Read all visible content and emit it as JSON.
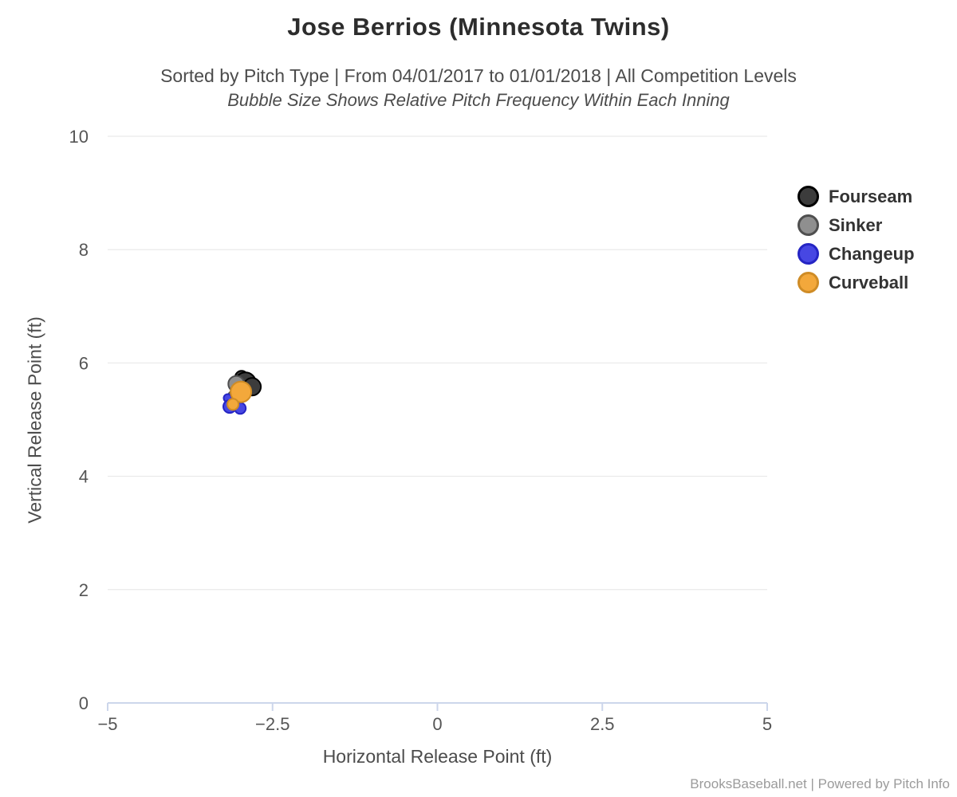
{
  "header": {
    "title": "Jose Berrios (Minnesota Twins)",
    "subtitle": "Sorted by Pitch Type | From 04/01/2017 to 01/01/2018 | All Competition Levels",
    "subtitle_note": "Bubble Size Shows Relative Pitch Frequency Within Each Inning"
  },
  "chart_data": {
    "type": "scatter",
    "title": "Jose Berrios (Minnesota Twins)",
    "xlabel": "Horizontal Release Point (ft)",
    "ylabel": "Vertical Release Point (ft)",
    "xlim": [
      -5,
      5
    ],
    "ylim": [
      0,
      10
    ],
    "x_ticks": [
      -5,
      -2.5,
      0,
      2.5,
      5
    ],
    "x_tick_labels": [
      "−5",
      "−2.5",
      "0",
      "2.5",
      "5"
    ],
    "y_ticks": [
      0,
      2,
      4,
      6,
      8,
      10
    ],
    "y_tick_labels": [
      "0",
      "2",
      "4",
      "6",
      "8",
      "10"
    ],
    "grid": "horizontal",
    "legend_position": "right",
    "bubble_note": "bubble radius r is in screen pixels, size shows relative pitch frequency",
    "series": [
      {
        "name": "Fourseam",
        "fill": "#3c3c3c",
        "stroke": "#000000",
        "points": [
          {
            "x": -2.97,
            "y": 5.75,
            "r": 8
          },
          {
            "x": -2.91,
            "y": 5.65,
            "r": 13
          },
          {
            "x": -2.81,
            "y": 5.58,
            "r": 11
          }
        ]
      },
      {
        "name": "Sinker",
        "fill": "#8f8f8f",
        "stroke": "#4f4f4f",
        "points": [
          {
            "x": -3.05,
            "y": 5.63,
            "r": 10
          },
          {
            "x": -3.09,
            "y": 5.41,
            "r": 7
          }
        ]
      },
      {
        "name": "Changeup",
        "fill": "#4747e3",
        "stroke": "#2525c4",
        "points": [
          {
            "x": -3.18,
            "y": 5.38,
            "r": 5
          },
          {
            "x": -3.15,
            "y": 5.23,
            "r": 8
          },
          {
            "x": -2.99,
            "y": 5.2,
            "r": 7
          }
        ]
      },
      {
        "name": "Curveball",
        "fill": "#f3a83b",
        "stroke": "#cf8c26",
        "points": [
          {
            "x": -2.98,
            "y": 5.49,
            "r": 13
          },
          {
            "x": -3.1,
            "y": 5.27,
            "r": 7
          }
        ]
      }
    ]
  },
  "colors": {
    "grid_line": "#e6e6e6",
    "axis_line": "#ccd6eb",
    "tick_label": "#555555",
    "title_text": "#2d2d2d",
    "subtitle_text": "#4c4c4c",
    "legend_text": "#333333",
    "footer_text": "#9b9b9b",
    "background": "#ffffff"
  },
  "footer": {
    "credit": "BrooksBaseball.net | Powered by Pitch Info"
  }
}
